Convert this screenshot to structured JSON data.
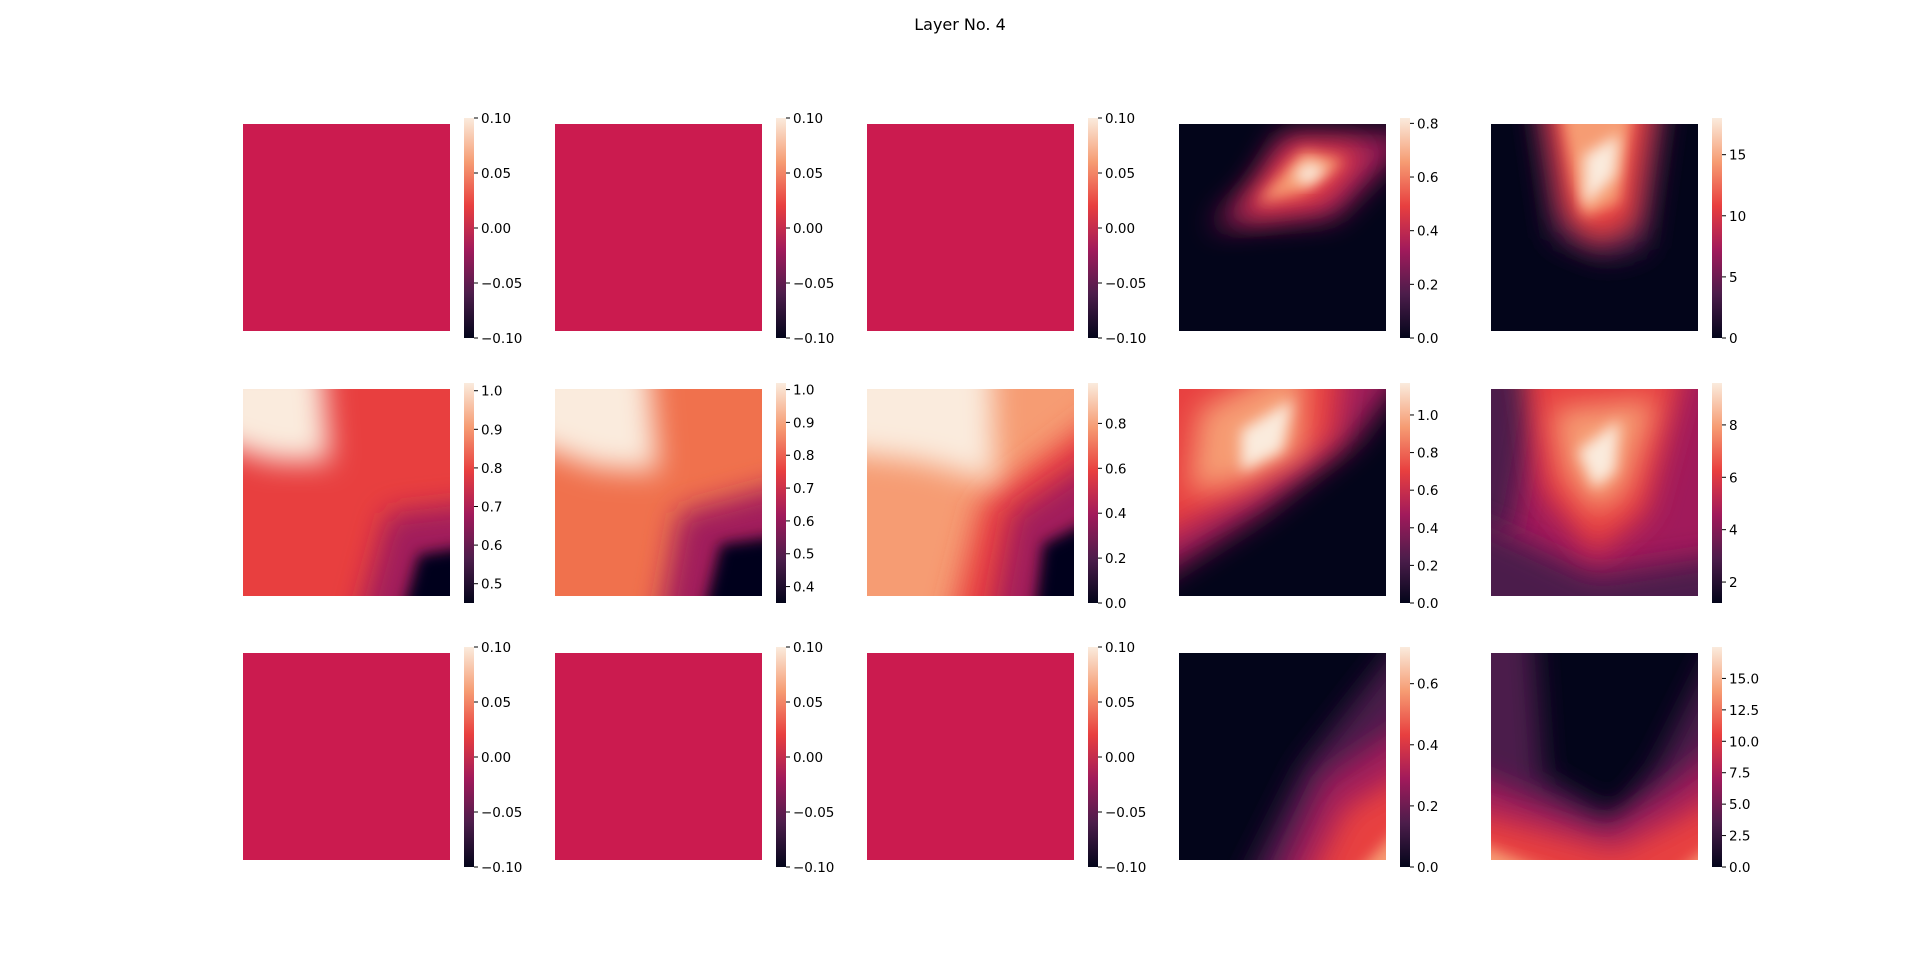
{
  "title": "Layer No. 4",
  "colormap": "rocket",
  "colormap_stops": [
    "#03051a",
    "#4c1d4b",
    "#a11a5b",
    "#e83f3f",
    "#f69c73",
    "#faebdd"
  ],
  "chart_data": [
    {
      "type": "heatmap",
      "row": 1,
      "col": 1,
      "description": "uniform",
      "fill_color": "#cb1b4f",
      "colorbar": {
        "min": -0.1,
        "max": 0.1,
        "ticks": [
          "0.10",
          "0.05",
          "0.00",
          "−0.05",
          "−0.10"
        ]
      }
    },
    {
      "type": "heatmap",
      "row": 1,
      "col": 2,
      "description": "uniform",
      "fill_color": "#cb1b4f",
      "colorbar": {
        "min": -0.1,
        "max": 0.1,
        "ticks": [
          "0.10",
          "0.05",
          "0.00",
          "−0.05",
          "−0.10"
        ]
      }
    },
    {
      "type": "heatmap",
      "row": 1,
      "col": 3,
      "description": "uniform",
      "fill_color": "#cb1b4f",
      "colorbar": {
        "min": -0.1,
        "max": 0.1,
        "ticks": [
          "0.10",
          "0.05",
          "0.00",
          "−0.05",
          "−0.10"
        ]
      }
    },
    {
      "type": "heatmap",
      "row": 1,
      "col": 4,
      "colorbar": {
        "min": 0,
        "max": 0.82,
        "ticks": [
          "0.8",
          "0.6",
          "0.4",
          "0.2",
          "0.0"
        ]
      }
    },
    {
      "type": "heatmap",
      "row": 1,
      "col": 5,
      "colorbar": {
        "min": 0,
        "max": 18,
        "ticks": [
          "15",
          "10",
          "5",
          "0"
        ]
      }
    },
    {
      "type": "heatmap",
      "row": 2,
      "col": 1,
      "colorbar": {
        "min": 0.45,
        "max": 1.02,
        "ticks": [
          "1.0",
          "0.9",
          "0.8",
          "0.7",
          "0.6",
          "0.5"
        ]
      }
    },
    {
      "type": "heatmap",
      "row": 2,
      "col": 2,
      "colorbar": {
        "min": 0.35,
        "max": 1.02,
        "ticks": [
          "1.0",
          "0.9",
          "0.8",
          "0.7",
          "0.6",
          "0.5",
          "0.4"
        ]
      }
    },
    {
      "type": "heatmap",
      "row": 2,
      "col": 3,
      "colorbar": {
        "min": 0,
        "max": 0.98,
        "ticks": [
          "0.8",
          "0.6",
          "0.4",
          "0.2",
          "0.0"
        ]
      }
    },
    {
      "type": "heatmap",
      "row": 2,
      "col": 4,
      "colorbar": {
        "min": 0,
        "max": 1.17,
        "ticks": [
          "1.0",
          "0.8",
          "0.6",
          "0.4",
          "0.2",
          "0.0"
        ]
      }
    },
    {
      "type": "heatmap",
      "row": 2,
      "col": 5,
      "colorbar": {
        "min": 1.2,
        "max": 9.6,
        "ticks": [
          "8",
          "6",
          "4",
          "2"
        ]
      }
    },
    {
      "type": "heatmap",
      "row": 3,
      "col": 1,
      "description": "uniform",
      "fill_color": "#cb1b4f",
      "colorbar": {
        "min": -0.1,
        "max": 0.1,
        "ticks": [
          "0.10",
          "0.05",
          "0.00",
          "−0.05",
          "−0.10"
        ]
      }
    },
    {
      "type": "heatmap",
      "row": 3,
      "col": 2,
      "description": "uniform",
      "fill_color": "#cb1b4f",
      "colorbar": {
        "min": -0.1,
        "max": 0.1,
        "ticks": [
          "0.10",
          "0.05",
          "0.00",
          "−0.05",
          "−0.10"
        ]
      }
    },
    {
      "type": "heatmap",
      "row": 3,
      "col": 3,
      "description": "uniform",
      "fill_color": "#cb1b4f",
      "colorbar": {
        "min": -0.1,
        "max": 0.1,
        "ticks": [
          "0.10",
          "0.05",
          "0.00",
          "−0.05",
          "−0.10"
        ]
      }
    },
    {
      "type": "heatmap",
      "row": 3,
      "col": 4,
      "colorbar": {
        "min": 0,
        "max": 0.72,
        "ticks": [
          "0.6",
          "0.4",
          "0.2",
          "0.0"
        ]
      }
    },
    {
      "type": "heatmap",
      "row": 3,
      "col": 5,
      "colorbar": {
        "min": 0,
        "max": 17.5,
        "ticks": [
          "15.0",
          "12.5",
          "10.0",
          "7.5",
          "5.0",
          "2.5",
          "0.0"
        ]
      }
    }
  ]
}
